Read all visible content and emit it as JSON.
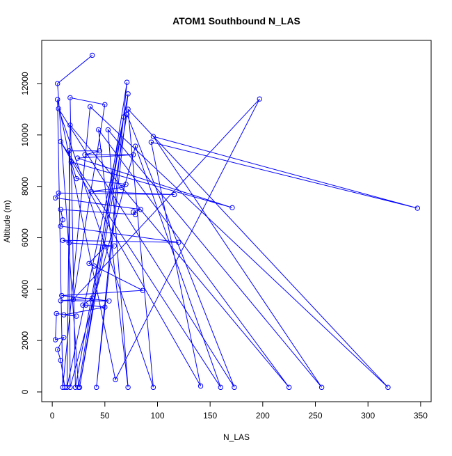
{
  "chart_data": {
    "type": "line",
    "title": "ATOM1 Southbound N_LAS",
    "x_label": "N_LAS",
    "y_label": "Altitude (m)",
    "x": [
      38,
      5,
      25,
      71,
      42,
      72,
      22,
      17,
      50,
      20,
      197,
      60,
      5,
      10,
      36,
      319,
      72,
      96,
      6,
      173,
      71,
      26,
      68,
      14,
      17,
      225,
      44,
      72,
      53,
      256,
      96,
      347,
      94,
      141,
      8,
      160,
      79,
      17,
      16,
      45,
      31,
      77,
      24,
      171,
      18,
      23,
      70,
      66,
      37,
      116,
      6,
      3,
      84,
      77,
      79,
      8,
      10,
      8,
      120,
      10,
      16,
      59,
      50,
      35,
      40,
      86,
      9,
      54,
      8,
      38,
      29,
      32,
      50,
      11,
      23,
      4,
      3,
      11,
      5,
      8,
      12
    ],
    "values": [
      13100,
      12000,
      180,
      12050,
      180,
      11600,
      180,
      11450,
      11180,
      3600,
      11400,
      480,
      11380,
      180,
      11100,
      180,
      11000,
      180,
      11020,
      180,
      10800,
      180,
      10700,
      180,
      10380,
      180,
      10200,
      180,
      10200,
      180,
      9940,
      7150,
      9720,
      230,
      9740,
      180,
      9560,
      180,
      9380,
      9380,
      9230,
      9230,
      9100,
      7170,
      8950,
      8300,
      8080,
      7950,
      7800,
      7680,
      7740,
      7550,
      7100,
      7000,
      6900,
      7100,
      6700,
      6450,
      5820,
      5900,
      5800,
      5680,
      5650,
      5000,
      4900,
      3950,
      3750,
      3540,
      3550,
      3650,
      3380,
      3380,
      3300,
      3000,
      2950,
      3050,
      2030,
      2120,
      1650,
      1230,
      180
    ],
    "color": "#0000ff",
    "marker": "circle",
    "xlim": [
      -10,
      360
    ],
    "ylim": [
      -380,
      13680
    ],
    "xticks": [
      0,
      50,
      100,
      150,
      200,
      250,
      300,
      350
    ],
    "yticks": [
      0,
      2000,
      4000,
      6000,
      8000,
      10000,
      12000
    ]
  }
}
